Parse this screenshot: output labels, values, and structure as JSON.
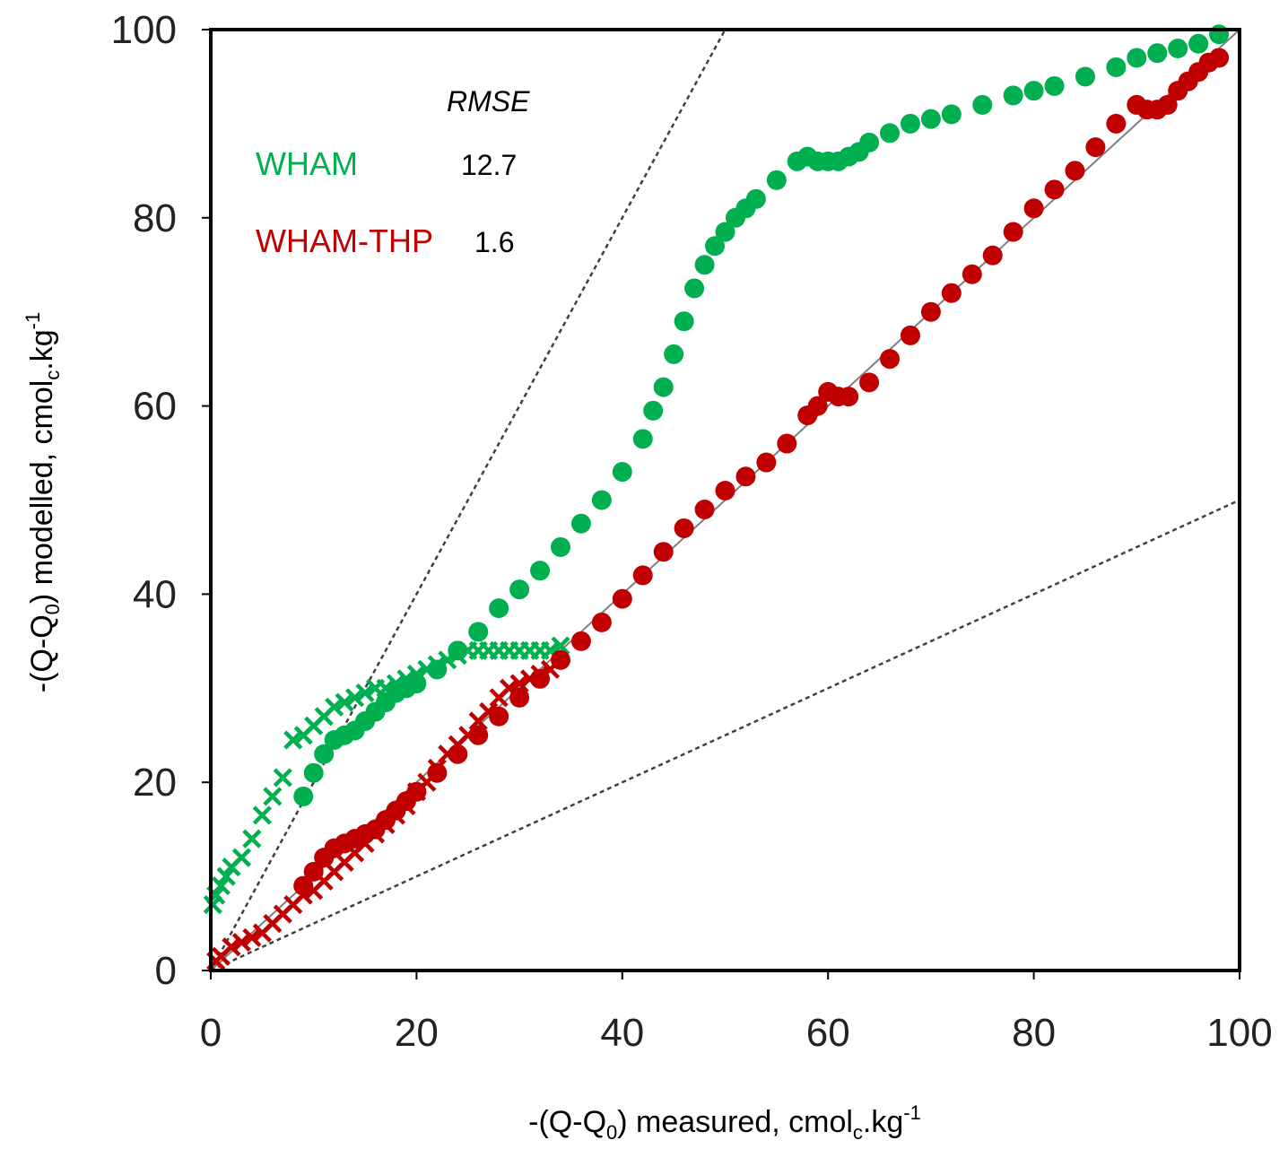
{
  "chart_data": {
    "type": "scatter",
    "xlabel": {
      "prefix": "-(Q-Q",
      "sub0": "0",
      "mid": ") measured, cmol",
      "subc": "c",
      "dot": ".kg",
      "sup": "-1"
    },
    "ylabel": {
      "prefix": "-(Q-Q",
      "sub0": "0",
      "mid": ") modelled, cmol",
      "subc": "c",
      "dot": ".kg",
      "sup": "-1"
    },
    "xlim": [
      0,
      100
    ],
    "ylim": [
      0,
      100
    ],
    "xticks": [
      0,
      20,
      40,
      60,
      80,
      100
    ],
    "yticks": [
      0,
      20,
      40,
      60,
      80,
      100
    ],
    "grid": false,
    "legend": {
      "header": "RMSE",
      "placement": "top-left",
      "entries": [
        {
          "name": "WHAM",
          "rmse": "12.7",
          "color": "#00b050"
        },
        {
          "name": "WHAM-THP",
          "rmse": "1.6",
          "color": "#c00000"
        }
      ]
    },
    "reference_lines": [
      {
        "style": "solid",
        "slope": 1,
        "color": "#7f7f7f"
      },
      {
        "style": "dashed",
        "slope": 2,
        "color": "#404040"
      },
      {
        "style": "dashed",
        "slope": 0.5,
        "color": "#404040"
      }
    ],
    "series": [
      {
        "color": "#00b050",
        "marker": "circle",
        "x": [
          9,
          10,
          11,
          12,
          13,
          14,
          15,
          16,
          17,
          18,
          19,
          20,
          22,
          24,
          26,
          28,
          30,
          32,
          34,
          36,
          38,
          40,
          42,
          43,
          44,
          45,
          46,
          47,
          48,
          49,
          50,
          51,
          52,
          53,
          55,
          57,
          58,
          59,
          60,
          61,
          62,
          63,
          64,
          66,
          68,
          70,
          72,
          75,
          78,
          80,
          82,
          85,
          88,
          90,
          92,
          94,
          96,
          98
        ],
        "y": [
          18.5,
          21,
          23,
          24.5,
          25,
          25.5,
          26.5,
          27.5,
          28.5,
          29.5,
          30,
          30.5,
          32,
          34,
          36,
          38.5,
          40.5,
          42.5,
          45,
          47.5,
          50,
          53,
          56.5,
          59.5,
          62,
          65.5,
          69,
          72.5,
          75,
          77,
          78.5,
          80,
          81,
          82,
          84,
          86,
          86.5,
          86,
          86,
          86,
          86.5,
          87,
          88,
          89,
          90,
          90.5,
          91,
          92,
          93,
          93.5,
          94,
          95,
          96,
          97,
          97.5,
          98,
          98.5,
          99.5
        ]
      },
      {
        "color": "#00b050",
        "marker": "plus",
        "x": [
          0.2,
          0.5,
          1,
          1.5,
          2,
          3,
          4,
          5,
          6,
          7,
          8,
          9,
          10,
          11,
          12,
          13,
          14,
          15,
          16,
          17,
          18,
          19,
          20,
          21,
          22,
          23,
          24,
          25,
          26,
          27,
          28,
          29,
          30,
          31,
          32,
          33,
          34
        ],
        "y": [
          7,
          8,
          9,
          10,
          11,
          12,
          14,
          16.5,
          18.5,
          20.5,
          24.5,
          25,
          26,
          27,
          28,
          28.5,
          29,
          29.5,
          30,
          30,
          30.5,
          31,
          31.5,
          32,
          32.5,
          33,
          33.5,
          34,
          34,
          34,
          34,
          34,
          34,
          34,
          34,
          34,
          34.5
        ]
      },
      {
        "color": "#c00000",
        "marker": "circle",
        "x": [
          9,
          10,
          11,
          12,
          13,
          14,
          15,
          16,
          17,
          18,
          19,
          20,
          22,
          24,
          26,
          28,
          30,
          32,
          34,
          36,
          38,
          40,
          42,
          44,
          46,
          48,
          50,
          52,
          54,
          56,
          58,
          59,
          60,
          61,
          62,
          64,
          66,
          68,
          70,
          72,
          74,
          76,
          78,
          80,
          82,
          84,
          86,
          88,
          90,
          91,
          92,
          93,
          94,
          95,
          96,
          97,
          98
        ],
        "y": [
          9,
          10.5,
          12,
          13,
          13.5,
          14,
          14.5,
          15,
          16,
          17,
          18,
          19,
          21,
          23,
          25,
          27,
          29,
          31,
          33,
          35,
          37,
          39.5,
          42,
          44.5,
          47,
          49,
          51,
          52.5,
          54,
          56,
          59,
          60,
          61.5,
          61,
          61,
          62.5,
          65,
          67.5,
          70,
          72,
          74,
          76,
          78.5,
          81,
          83,
          85,
          87.5,
          90,
          92,
          91.5,
          91.5,
          92,
          93.5,
          94.5,
          95.5,
          96.5,
          97
        ]
      },
      {
        "color": "#c00000",
        "marker": "plus",
        "x": [
          0.5,
          1,
          2,
          3,
          4,
          5,
          6,
          7,
          8,
          9,
          10,
          11,
          12,
          13,
          14,
          15,
          16,
          17,
          18,
          19,
          20,
          21,
          22,
          23,
          24,
          25,
          26,
          27,
          28,
          29,
          30,
          31,
          32,
          33
        ],
        "y": [
          1,
          1.5,
          2.5,
          3,
          3.5,
          4,
          5,
          6,
          7,
          8,
          8.5,
          9.5,
          10.5,
          11.5,
          12.5,
          13.5,
          14.5,
          15.5,
          16.5,
          17.5,
          19,
          20,
          21.5,
          23,
          24,
          25,
          26.5,
          27.5,
          29,
          30,
          30.5,
          31,
          31.5,
          32
        ]
      }
    ]
  }
}
